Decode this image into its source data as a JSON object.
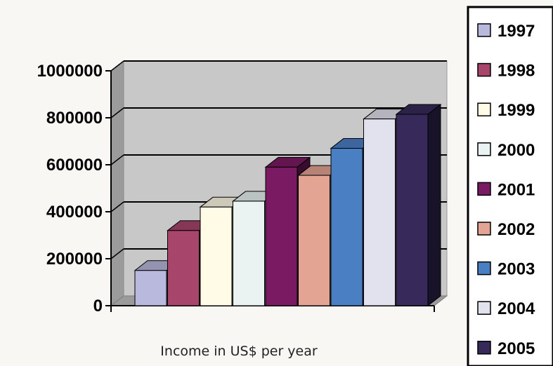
{
  "chart_data": {
    "type": "bar",
    "style": "3d-column",
    "title": "",
    "xlabel": "Income in US$ per year",
    "ylabel": "",
    "ylim": [
      0,
      1000000
    ],
    "yticks": [
      0,
      200000,
      400000,
      600000,
      800000,
      1000000
    ],
    "grid": true,
    "legend_position": "right",
    "series": [
      {
        "name": "1997",
        "value": 150000,
        "color": "#b9b9dd"
      },
      {
        "name": "1998",
        "value": 320000,
        "color": "#a8456b"
      },
      {
        "name": "1999",
        "value": 420000,
        "color": "#fffbe6"
      },
      {
        "name": "2000",
        "value": 445000,
        "color": "#eaf2f2"
      },
      {
        "name": "2001",
        "value": 590000,
        "color": "#7a1a63"
      },
      {
        "name": "2002",
        "value": 555000,
        "color": "#e3a493"
      },
      {
        "name": "2003",
        "value": 670000,
        "color": "#4b7fc4"
      },
      {
        "name": "2004",
        "value": 795000,
        "color": "#e2e1ee"
      },
      {
        "name": "2005",
        "value": 815000,
        "color": "#372a5a"
      }
    ]
  }
}
